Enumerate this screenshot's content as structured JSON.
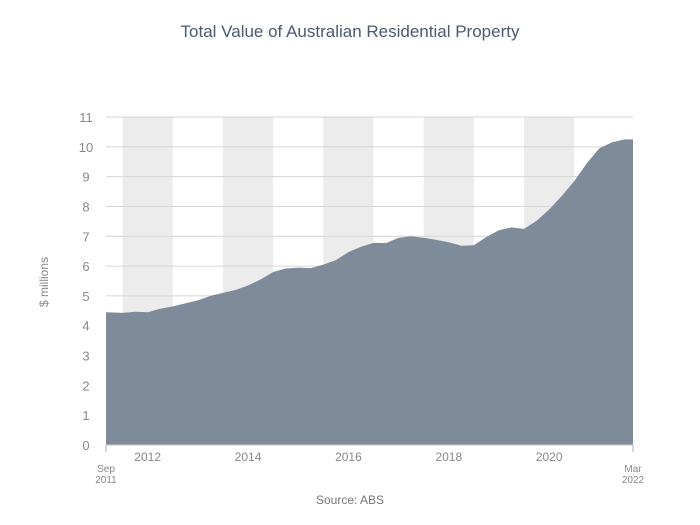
{
  "chart_data": {
    "type": "area",
    "title": "Total Value of Australian Residential Property",
    "ylabel": "$ millions",
    "xlabel": "",
    "source": "Source: ABS",
    "ylim": [
      0,
      11
    ],
    "yticks": [
      0,
      1,
      2,
      3,
      4,
      5,
      6,
      7,
      8,
      9,
      10,
      11
    ],
    "xlim": [
      2011.67,
      2022.17
    ],
    "x_tick_labels": [
      {
        "x": 2011.67,
        "label": "Sep 2011"
      },
      {
        "x": 2012.5,
        "label": "2012"
      },
      {
        "x": 2014.5,
        "label": "2014"
      },
      {
        "x": 2016.5,
        "label": "2016"
      },
      {
        "x": 2018.5,
        "label": "2018"
      },
      {
        "x": 2020.5,
        "label": "2020"
      },
      {
        "x": 2022.17,
        "label": "Mar 2022"
      }
    ],
    "shaded_years": [
      2012,
      2014,
      2016,
      2018,
      2020
    ],
    "grid": true,
    "colors": {
      "area": "#7e8b9b",
      "band": "#ececec",
      "grid": "#d6d6d6",
      "text": "#888888",
      "title": "#4a5a6f"
    },
    "series": [
      {
        "x": [
          2011.67,
          2012.0,
          2012.25,
          2012.5,
          2012.75,
          2013.0,
          2013.25,
          2013.5,
          2013.75,
          2014.0,
          2014.25,
          2014.5,
          2014.75,
          2015.0,
          2015.25,
          2015.5,
          2015.75,
          2016.0,
          2016.25,
          2016.5,
          2016.75,
          2017.0,
          2017.25,
          2017.5,
          2017.75,
          2018.0,
          2018.25,
          2018.5,
          2018.75,
          2019.0,
          2019.25,
          2019.5,
          2019.75,
          2020.0,
          2020.25,
          2020.5,
          2020.75,
          2021.0,
          2021.25,
          2021.5,
          2021.75,
          2022.0,
          2022.17
        ],
        "values": [
          4.45,
          4.43,
          4.47,
          4.45,
          4.57,
          4.65,
          4.75,
          4.85,
          5.0,
          5.1,
          5.2,
          5.35,
          5.55,
          5.8,
          5.92,
          5.95,
          5.93,
          6.05,
          6.2,
          6.47,
          6.65,
          6.78,
          6.77,
          6.95,
          7.0,
          6.95,
          6.88,
          6.8,
          6.68,
          6.7,
          6.98,
          7.2,
          7.3,
          7.25,
          7.52,
          7.9,
          8.35,
          8.85,
          9.45,
          9.95,
          10.15,
          10.25,
          10.25
        ]
      }
    ]
  }
}
